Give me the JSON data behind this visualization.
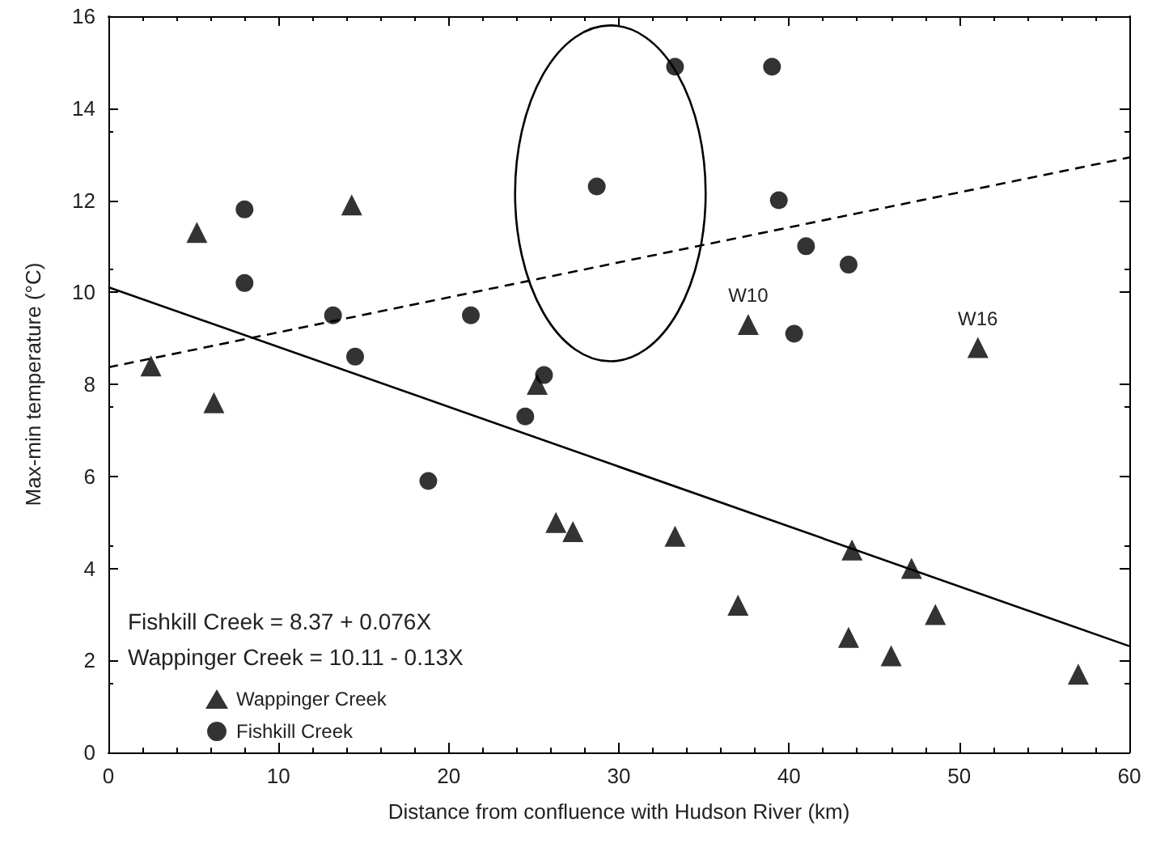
{
  "chart_data": {
    "type": "scatter",
    "xlabel": "Distance from confluence with Hudson River (km)",
    "ylabel": "Max-min temperature (°C)",
    "xlim": [
      0,
      60
    ],
    "xticks": [
      0,
      10,
      20,
      30,
      40,
      50,
      60
    ],
    "ylim": [
      0,
      16
    ],
    "yticks": [
      0,
      2,
      4,
      6,
      8,
      10,
      12,
      14,
      16
    ],
    "grid": false,
    "legend": "bottom left",
    "series": [
      {
        "name": "Wappinger Creek",
        "color": "#000000",
        "marker": "triangle",
        "x": [
          2.5,
          5.2,
          6.2,
          14.3,
          25.2,
          26.3,
          27.3,
          33.3,
          37.6,
          37.0,
          43.5,
          43.7,
          46.0,
          47.2,
          48.6,
          51.1,
          57.0
        ],
        "values": [
          8.4,
          11.3,
          7.6,
          11.9,
          8.0,
          5.0,
          4.8,
          4.7,
          9.3,
          3.2,
          2.5,
          4.4,
          2.1,
          4.0,
          3.0,
          8.8,
          1.7
        ]
      },
      {
        "name": "Fishkill Creek",
        "color": "#000000",
        "marker": "circle",
        "x": [
          8.0,
          8.0,
          13.2,
          14.5,
          18.8,
          21.3,
          24.5,
          25.6,
          28.7,
          33.3,
          39.0,
          39.4,
          41.0,
          43.5,
          40.3
        ],
        "values": [
          11.8,
          10.2,
          9.5,
          8.6,
          5.9,
          9.5,
          7.3,
          8.2,
          12.3,
          14.9,
          14.9,
          12.0,
          11.0,
          10.6,
          9.1
        ]
      },
      {
        "type": "line",
        "color": "#000000",
        "marker": "none",
        "line_style": "solid",
        "x": [
          0,
          60
        ],
        "values": [
          10.11,
          2.31
        ]
      },
      {
        "type": "line",
        "color": "#000000",
        "marker": "none",
        "line_style": "dashed",
        "x": [
          0,
          60
        ],
        "values": [
          8.37,
          12.93
        ]
      }
    ],
    "annotations": [
      "Fishkill Creek = 8.37 + 0.076X",
      "Wappinger Creek = 10.11 - 0.13X",
      {
        "text": "W10",
        "x": 37.6,
        "y": 9.3
      },
      {
        "text": "W16",
        "x": 51.1,
        "y": 8.8
      }
    ]
  }
}
